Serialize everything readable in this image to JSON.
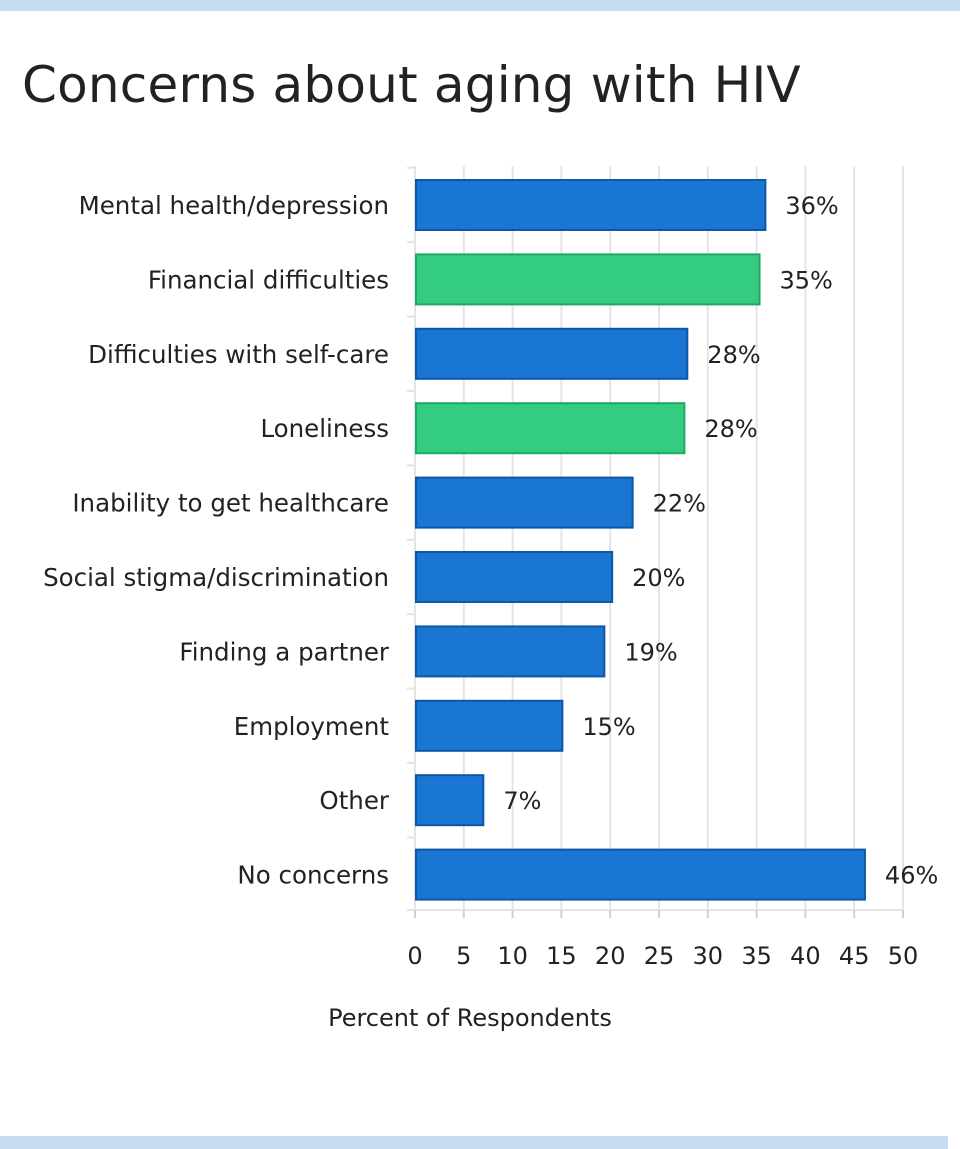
{
  "colors": {
    "blue": "#1976d2",
    "blue_border": "#0d57a7",
    "green": "#33cc80",
    "green_border": "#1ea862",
    "grid": "#e4e4e4",
    "frame": "#c5dcf3",
    "text": "#222222"
  },
  "chart_data": {
    "type": "bar",
    "orientation": "horizontal",
    "title": "Concerns about aging with HIV",
    "xlabel": "Percent of Respondents",
    "ylabel": "",
    "xlim": [
      0,
      50
    ],
    "xticks": [
      0,
      5,
      10,
      15,
      20,
      25,
      30,
      35,
      40,
      45,
      50
    ],
    "grid": true,
    "categories": [
      "Mental health/depression",
      "Financial difficulties",
      "Difficulties with self-care",
      "Loneliness",
      "Inability to get healthcare",
      "Social stigma/discrimination",
      "Finding a partner",
      "Employment",
      "Other",
      "No concerns"
    ],
    "values": [
      35.9,
      35.3,
      27.9,
      27.6,
      22.3,
      20.2,
      19.4,
      15.1,
      7.0,
      46.1
    ],
    "data_labels": [
      "36%",
      "35%",
      "28%",
      "28%",
      "22%",
      "20%",
      "19%",
      "15%",
      "7%",
      "46%"
    ],
    "bar_colors": [
      "blue",
      "green",
      "blue",
      "green",
      "blue",
      "blue",
      "blue",
      "blue",
      "blue",
      "blue"
    ]
  }
}
